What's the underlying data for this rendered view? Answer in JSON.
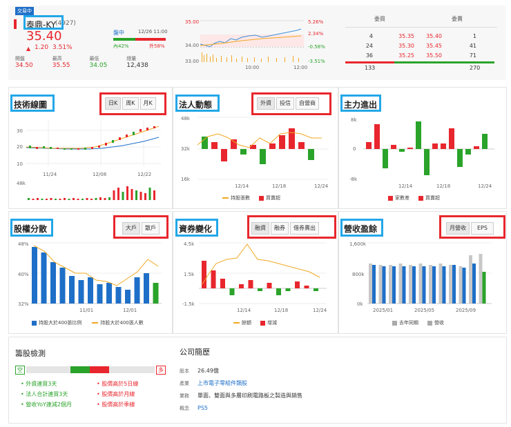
{
  "header": {
    "badge": "交易中",
    "stock_name": "泰鼎-KY",
    "stock_code": "(4927)",
    "price": "35.40",
    "change_arrow": "▲",
    "change": "1.20",
    "change_pct": "3.51%",
    "trading_status": "盤中",
    "date_time": "12/26 11:00",
    "inner_label": "內42%",
    "outer_label": "外58%",
    "stats": [
      {
        "label": "開盤",
        "value": "34.50"
      },
      {
        "label": "最高",
        "value": "35.55"
      },
      {
        "label": "最低",
        "value": "34.05"
      },
      {
        "label": "總量",
        "value": "12,438"
      }
    ],
    "intraday": {
      "y_left": [
        "35.00",
        "34.00",
        "33.00"
      ],
      "y_right": [
        "5.26%",
        "2.34%",
        "-0.58%",
        "-3.51%"
      ],
      "x_labels": [
        "10:00",
        "12:00"
      ]
    }
  },
  "order_book": {
    "headers": [
      "委買",
      "委賣"
    ],
    "rows": [
      {
        "buy_qty": "4",
        "buy_price": "35.35",
        "sell_price": "35.40",
        "sell_qty": "1"
      },
      {
        "buy_qty": "24",
        "buy_price": "35.30",
        "sell_price": "35.45",
        "sell_qty": "41"
      },
      {
        "buy_qty": "36",
        "buy_price": "35.25",
        "sell_price": "35.50",
        "sell_qty": "71"
      }
    ],
    "buy_total": "133",
    "sell_total": "270"
  },
  "tech": {
    "title": "技術線圖",
    "buttons": [
      "日K",
      "周K",
      "月K"
    ],
    "y_labels": [
      "30",
      "20",
      "10"
    ],
    "x_labels": [
      "11/24",
      "12/08",
      "12/22"
    ],
    "vol_label": "48k"
  },
  "inst": {
    "title": "法人動態",
    "buttons": [
      "外資",
      "投信",
      "自營商"
    ],
    "y_labels": [
      "48k",
      "32k",
      "16k"
    ],
    "x_labels": [
      "12/14",
      "12/18",
      "12/24"
    ],
    "legend": [
      "持股張數",
      "買賣超"
    ]
  },
  "main_force": {
    "title": "主力進出",
    "y_labels": [
      "8k",
      "0",
      "-8k"
    ],
    "x_labels": [
      "12/14",
      "12/18",
      "12/24"
    ],
    "legend": [
      "家數差",
      "買賣超"
    ]
  },
  "equity": {
    "title": "股權分散",
    "buttons": [
      "大戶",
      "散戶"
    ],
    "y_labels": [
      "48%",
      "40%",
      "32%"
    ],
    "x_labels": [
      "11/01",
      "12/01"
    ],
    "legend": [
      "持股大於400張比例",
      "持股大於400張人數"
    ]
  },
  "margin": {
    "title": "資券變化",
    "buttons": [
      "融資",
      "融券",
      "借券賣出"
    ],
    "y_labels": [
      "4.5k",
      "1.5k",
      "-1.5k"
    ],
    "x_labels": [
      "12/14",
      "12/18",
      "12/24"
    ],
    "legend": [
      "餘額",
      "增減"
    ]
  },
  "revenue": {
    "title": "營收盈餘",
    "buttons": [
      "月營收",
      "EPS"
    ],
    "y_labels": [
      "1,600k",
      "800k",
      "0k"
    ],
    "x_labels": [
      "2025/01",
      "2025/05",
      "2025/09"
    ],
    "legend": [
      "去年同期",
      "營收"
    ]
  },
  "stock_check": {
    "title": "籌股檢測",
    "empty_label": "空",
    "long_label": "多",
    "bull_items": [
      "外資連買3天",
      "法人合計連買3天",
      "營收YoY連減2個月"
    ],
    "bear_items": [
      "股價高於5日線",
      "股價高於月線",
      "股價高於季線"
    ]
  },
  "company": {
    "title": "公司簡歷",
    "rows": [
      {
        "label": "股本",
        "value": "26.49億"
      },
      {
        "label": "產業",
        "value": "上市電子零組件類股"
      },
      {
        "label": "業務",
        "value": "單面、雙面與多層印刷電路板之製造與銷售"
      },
      {
        "label": "概念",
        "value": "PS5"
      }
    ]
  },
  "colors": {
    "red": "#e8262d",
    "green": "#2aa32a",
    "blue": "#1e6fc8",
    "orange": "#f1a821",
    "highlight_blue": "#22a7e8"
  }
}
